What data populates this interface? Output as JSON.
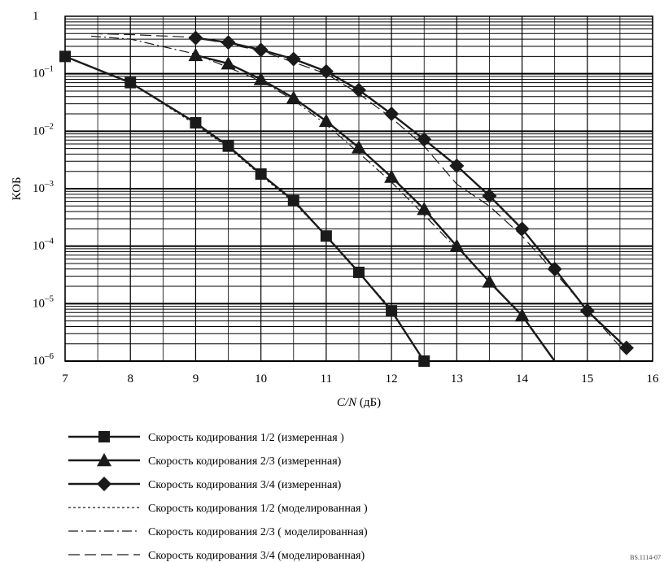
{
  "chart_data": {
    "type": "line",
    "xlabel_italic": "C/N",
    "xlabel_rest": " (дБ)",
    "ylabel": "КОБ",
    "xlim": [
      7,
      16
    ],
    "ylim": [
      1e-06,
      1
    ],
    "y_scale": "log",
    "grid": true,
    "legend_position": "below-chart",
    "x_ticks": [
      7,
      8,
      9,
      10,
      11,
      12,
      13,
      14,
      15,
      16
    ],
    "y_ticks": [
      {
        "value": 1,
        "base": "1",
        "exp": ""
      },
      {
        "value": 0.1,
        "base": "10",
        "exp": "–1"
      },
      {
        "value": 0.01,
        "base": "10",
        "exp": "–2"
      },
      {
        "value": 0.001,
        "base": "10",
        "exp": "–3"
      },
      {
        "value": 0.0001,
        "base": "10",
        "exp": "–4"
      },
      {
        "value": 1e-05,
        "base": "10",
        "exp": "–5"
      },
      {
        "value": 1e-06,
        "base": "10",
        "exp": "–6"
      }
    ],
    "series": [
      {
        "name": "Скорость кодирования 1/2  (измеренная )",
        "style": "solid",
        "marker": "square",
        "points": [
          [
            7.0,
            0.2
          ],
          [
            8.0,
            0.07
          ],
          [
            9.0,
            0.014
          ],
          [
            9.5,
            0.0055
          ],
          [
            10.0,
            0.0018
          ],
          [
            10.5,
            0.00062
          ],
          [
            11.0,
            0.00015
          ],
          [
            11.5,
            3.5e-05
          ],
          [
            12.0,
            7.5e-06
          ],
          [
            12.5,
            1e-06
          ]
        ]
      },
      {
        "name": "Скорость кодирования 2/3 (измеренная)",
        "style": "solid",
        "marker": "triangle",
        "points": [
          [
            9.0,
            0.21
          ],
          [
            9.5,
            0.15
          ],
          [
            10.0,
            0.08
          ],
          [
            10.5,
            0.038
          ],
          [
            11.0,
            0.015
          ],
          [
            11.5,
            0.0052
          ],
          [
            12.0,
            0.0016
          ],
          [
            12.5,
            0.00044
          ],
          [
            13.0,
            0.0001
          ],
          [
            13.5,
            2.4e-05
          ],
          [
            14.0,
            6.2e-06
          ],
          [
            14.5,
            1e-06
          ]
        ]
      },
      {
        "name": "Скорость кодирования 3/4 (измеренная)",
        "style": "solid",
        "marker": "diamond",
        "points": [
          [
            9.0,
            0.42
          ],
          [
            9.5,
            0.35
          ],
          [
            10.0,
            0.26
          ],
          [
            10.5,
            0.18
          ],
          [
            11.0,
            0.11
          ],
          [
            11.5,
            0.052
          ],
          [
            12.0,
            0.02
          ],
          [
            12.5,
            0.0072
          ],
          [
            13.0,
            0.0025
          ],
          [
            13.5,
            0.00075
          ],
          [
            14.0,
            0.0002
          ],
          [
            14.5,
            4e-05
          ],
          [
            15.0,
            7.5e-06
          ],
          [
            15.6,
            1.7e-06
          ]
        ]
      },
      {
        "name": "Скорость кодирования 1/2  (моделированная )",
        "style": "dotted",
        "marker": "none",
        "points": [
          [
            7.0,
            0.2
          ],
          [
            8.0,
            0.07
          ],
          [
            9.0,
            0.013
          ],
          [
            9.5,
            0.0052
          ],
          [
            10.0,
            0.0017
          ],
          [
            10.5,
            0.00058
          ],
          [
            11.0,
            0.00015
          ],
          [
            11.5,
            3.5e-05
          ],
          [
            12.0,
            8e-06
          ]
        ]
      },
      {
        "name": "Скорость кодирования 2/3 ( моделированная)",
        "style": "dashdot",
        "marker": "none",
        "points": [
          [
            7.4,
            0.45
          ],
          [
            8.0,
            0.4
          ],
          [
            9.0,
            0.22
          ],
          [
            10.0,
            0.075
          ],
          [
            10.5,
            0.035
          ],
          [
            11.0,
            0.013
          ],
          [
            11.5,
            0.0042
          ],
          [
            12.0,
            0.0013
          ],
          [
            12.5,
            0.00035
          ],
          [
            13.0,
            9e-05
          ]
        ]
      },
      {
        "name": "Скорость кодирования 3/4 (моделированная)",
        "style": "dashed",
        "marker": "none",
        "points": [
          [
            7.4,
            0.5
          ],
          [
            8.0,
            0.48
          ],
          [
            9.0,
            0.43
          ],
          [
            10.0,
            0.25
          ],
          [
            11.0,
            0.1
          ],
          [
            11.5,
            0.045
          ],
          [
            12.0,
            0.017
          ],
          [
            12.5,
            0.0055
          ],
          [
            13.0,
            0.0012
          ],
          [
            13.5,
            0.0005
          ],
          [
            14.0,
            0.00015
          ],
          [
            14.5,
            3.5e-05
          ],
          [
            15.0,
            7.8e-06
          ],
          [
            15.5,
            1.8e-06
          ]
        ]
      }
    ],
    "reference": "BS.1114-07"
  }
}
